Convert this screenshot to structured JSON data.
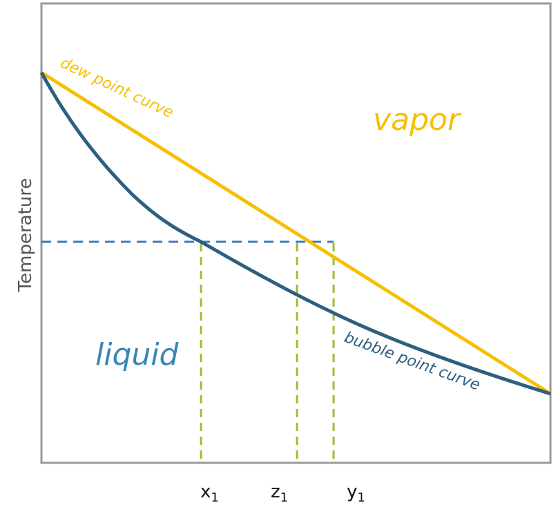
{
  "axis_label": "Temperature",
  "curves": {
    "dew": "dew point curve",
    "bubble": "bubble point curve"
  },
  "regions": {
    "vapor": "vapor",
    "liquid": "liquid"
  },
  "compositions": [
    {
      "symbol": "x",
      "subscript": "1"
    },
    {
      "symbol": "z",
      "subscript": "1"
    },
    {
      "symbol": "y",
      "subscript": "1"
    }
  ]
}
